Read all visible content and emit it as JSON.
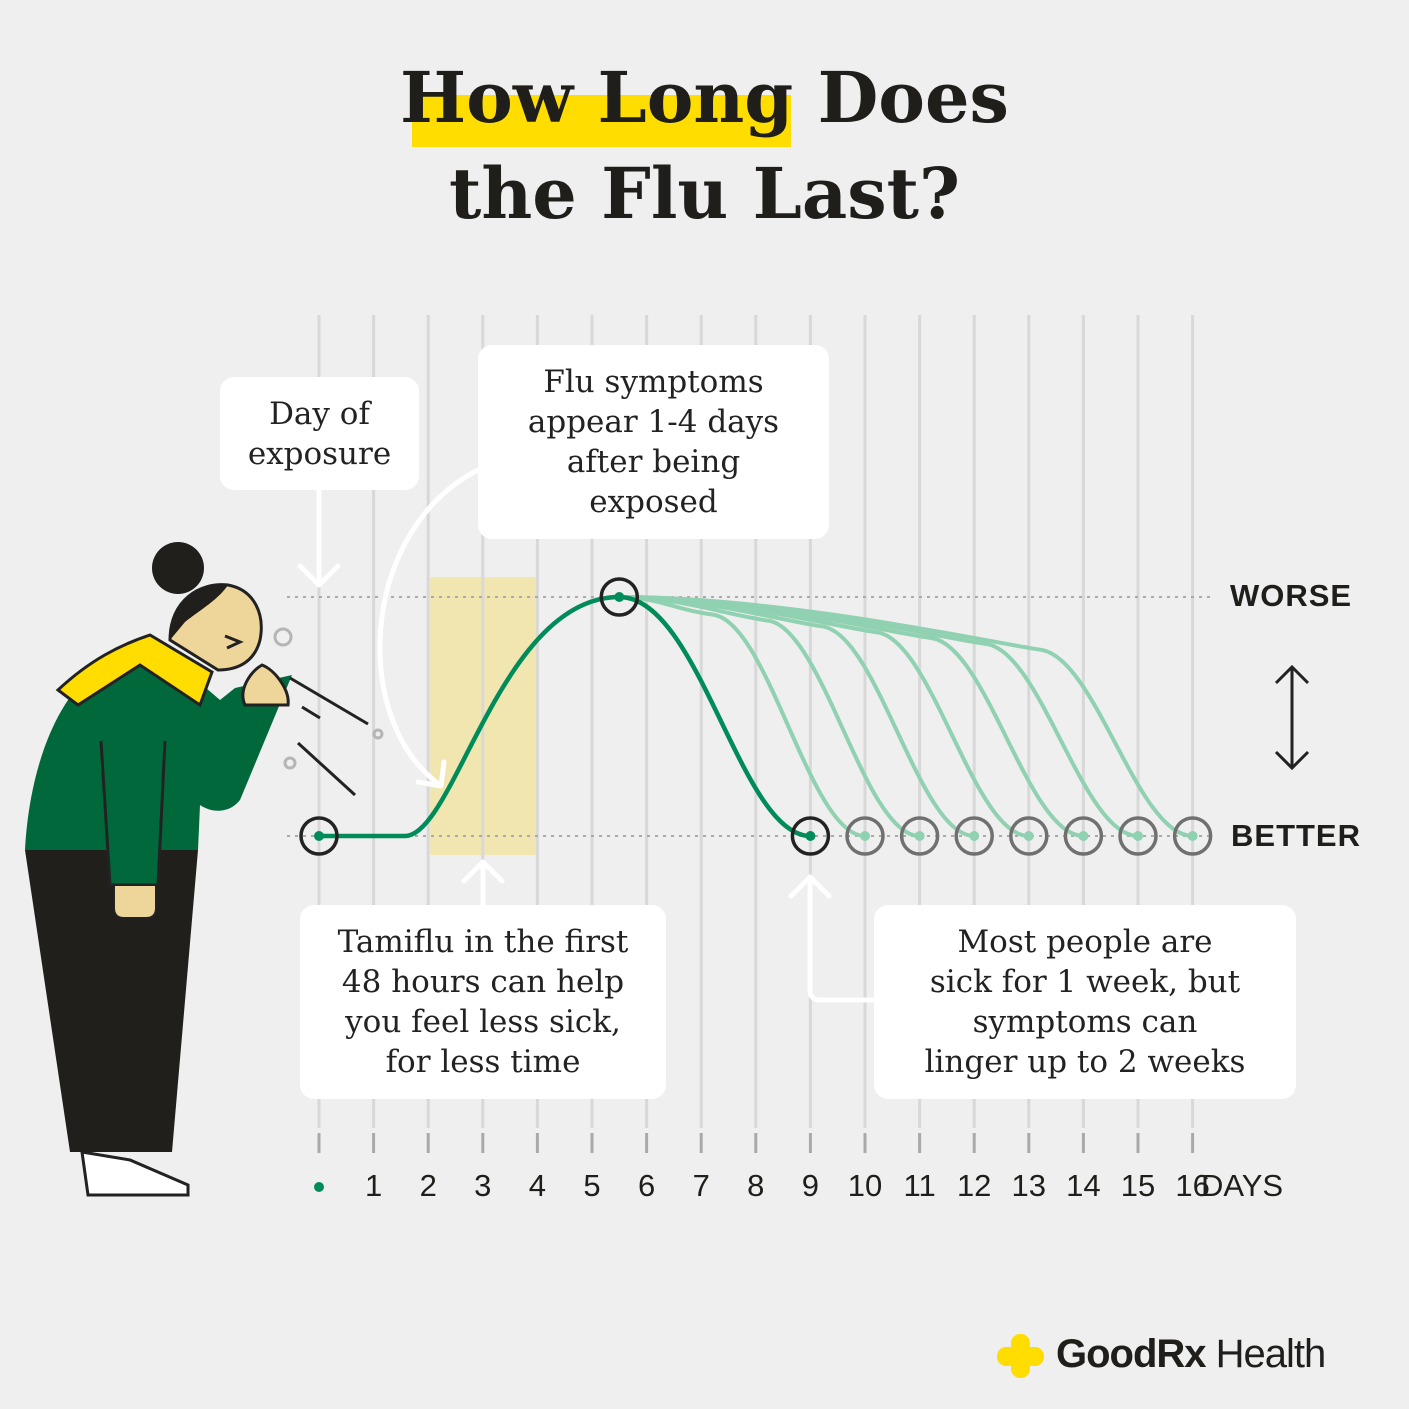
{
  "title": {
    "highlight": "How Long",
    "line1_rest": " Does",
    "line2": "the Flu Last?"
  },
  "callouts": {
    "exposure": "Day of\nexposure",
    "symptoms": "Flu symptoms\nappear 1-4 days\nafter being\nexposed",
    "tamiflu": "Tamiflu in the first\n48 hours can help\nyou feel less sick,\nfor less time",
    "duration": "Most people are\nsick for 1 week, but\nsymptoms can\nlinger up to 2 weeks"
  },
  "scale": {
    "top": "WORSE",
    "bottom": "BETTER"
  },
  "axis": {
    "days": [
      "1",
      "2",
      "3",
      "4",
      "5",
      "6",
      "7",
      "8",
      "9",
      "10",
      "11",
      "12",
      "13",
      "14",
      "15",
      "16"
    ],
    "unit": "DAYS"
  },
  "timeline": {
    "exposure_day": 0,
    "peak_day": 5.5,
    "typical_recovery_day": 9,
    "extended_recovery_days": [
      10,
      11,
      12,
      13,
      14,
      15,
      16
    ],
    "tamiflu_window_days": [
      2,
      4
    ]
  },
  "colors": {
    "primary_curve": "#008c5a",
    "extended_curves": "#8fd1b0",
    "highlight": "#ffdd00",
    "tamiflu_band": "#f1e6b0",
    "sweater": "#00683a"
  },
  "brand": {
    "name_bold": "GoodRx",
    "name_light": " Health"
  }
}
